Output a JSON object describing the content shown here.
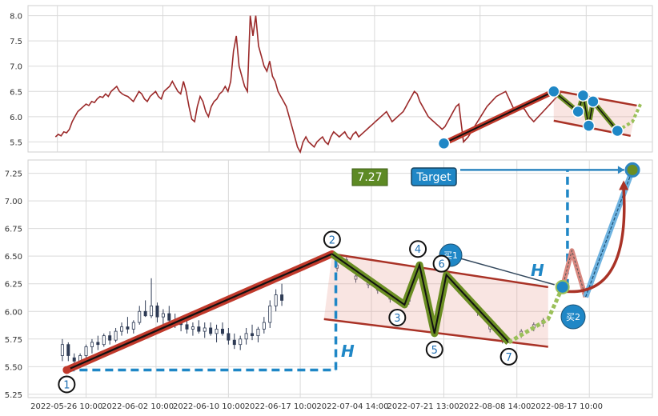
{
  "chart_data": [
    {
      "type": "line",
      "panel": "overview",
      "ylim": [
        5.3,
        8.2
      ],
      "yticks": [
        "5.5",
        "6.0",
        "6.5",
        "7.0",
        "7.5",
        "8.0"
      ],
      "ytick_values": [
        5.5,
        6.0,
        6.5,
        7.0,
        7.5,
        8.0
      ],
      "grid": true,
      "series": [
        {
          "values": [
            5.6,
            5.65,
            5.62,
            5.7,
            5.68,
            5.75,
            5.9,
            6.0,
            6.1,
            6.15,
            6.2,
            6.25,
            6.22,
            6.3,
            6.28,
            6.35,
            6.4,
            6.38,
            6.45,
            6.4,
            6.5,
            6.55,
            6.6,
            6.5,
            6.45,
            6.42,
            6.4,
            6.35,
            6.3,
            6.4,
            6.5,
            6.45,
            6.35,
            6.3,
            6.4,
            6.45,
            6.5,
            6.4,
            6.35,
            6.5,
            6.55,
            6.6,
            6.7,
            6.6,
            6.5,
            6.45,
            6.7,
            6.5,
            6.2,
            5.95,
            5.9,
            6.2,
            6.4,
            6.3,
            6.1,
            6.0,
            6.2,
            6.3,
            6.35,
            6.45,
            6.5,
            6.6,
            6.5,
            6.7,
            7.3,
            7.6,
            7.0,
            6.8,
            6.6,
            6.5,
            8.0,
            7.6,
            8.0,
            7.4,
            7.2,
            7.0,
            6.9,
            7.1,
            6.8,
            6.7,
            6.5,
            6.4,
            6.3,
            6.2,
            6.0,
            5.8,
            5.6,
            5.4,
            5.3,
            5.5,
            5.6,
            5.5,
            5.45,
            5.4,
            5.5,
            5.55,
            5.6,
            5.5,
            5.45,
            5.6,
            5.7,
            5.65,
            5.6,
            5.65,
            5.7,
            5.6,
            5.55,
            5.65,
            5.7,
            5.6,
            5.65,
            5.7,
            5.75,
            5.8,
            5.85,
            5.9,
            5.95,
            6.0,
            6.05,
            6.1,
            6.0,
            5.9,
            5.95,
            6.0,
            6.05,
            6.1,
            6.2,
            6.3,
            6.4,
            6.5,
            6.45,
            6.3,
            6.2,
            6.1,
            6.0,
            5.95,
            5.9,
            5.85,
            5.8,
            5.75,
            5.8,
            5.9,
            6.0,
            6.1,
            6.2,
            6.25
          ]
        }
      ],
      "pattern_points": [
        {
          "x": 0.666,
          "y": 5.47
        },
        {
          "x": 0.842,
          "y": 6.5
        },
        {
          "x": 0.881,
          "y": 6.1
        },
        {
          "x": 0.889,
          "y": 6.42
        },
        {
          "x": 0.898,
          "y": 5.82
        },
        {
          "x": 0.905,
          "y": 6.3
        },
        {
          "x": 0.944,
          "y": 5.72
        }
      ],
      "pattern_path": [
        {
          "x": 0.666,
          "y": 5.47
        },
        {
          "x": 0.842,
          "y": 6.5
        },
        {
          "x": 0.881,
          "y": 6.1
        },
        {
          "x": 0.889,
          "y": 6.42
        },
        {
          "x": 0.898,
          "y": 5.82
        },
        {
          "x": 0.905,
          "y": 6.3
        },
        {
          "x": 0.944,
          "y": 5.72
        },
        {
          "x": 0.968,
          "y": 5.9
        },
        {
          "x": 0.981,
          "y": 6.25
        }
      ],
      "channel_upper": [
        {
          "x": 0.842,
          "y": 6.52
        },
        {
          "x": 0.975,
          "y": 6.22
        }
      ],
      "channel_lower": [
        {
          "x": 0.842,
          "y": 5.92
        },
        {
          "x": 0.965,
          "y": 5.62
        }
      ]
    },
    {
      "type": "candlestick",
      "panel": "detail",
      "ylim": [
        5.22,
        7.37
      ],
      "yticks": [
        "5.25",
        "5.50",
        "5.75",
        "6.00",
        "6.25",
        "6.50",
        "6.75",
        "7.00",
        "7.25"
      ],
      "ytick_values": [
        5.25,
        5.5,
        5.75,
        6.0,
        6.25,
        6.5,
        6.75,
        7.0,
        7.25
      ],
      "xtick_labels": [
        "2022-05-26 10:00",
        "2022-06-02 10:00",
        "2022-06-10 10:00",
        "2022-06-17 10:00",
        "2022-07-04 14:00",
        "2022-07-21 13:00",
        "2022-08-08 14:00",
        "2022-08-17 10:00"
      ],
      "grid": true,
      "candles": [
        [
          0.0,
          5.6,
          5.75,
          5.55,
          5.7
        ],
        [
          0.01,
          5.7,
          5.72,
          5.55,
          5.6
        ],
        [
          0.02,
          5.58,
          5.62,
          5.48,
          5.55
        ],
        [
          0.03,
          5.55,
          5.62,
          5.5,
          5.6
        ],
        [
          0.04,
          5.6,
          5.7,
          5.58,
          5.68
        ],
        [
          0.05,
          5.68,
          5.75,
          5.62,
          5.72
        ],
        [
          0.06,
          5.72,
          5.78,
          5.65,
          5.7
        ],
        [
          0.07,
          5.7,
          5.8,
          5.68,
          5.78
        ],
        [
          0.08,
          5.78,
          5.82,
          5.7,
          5.74
        ],
        [
          0.09,
          5.74,
          5.85,
          5.72,
          5.82
        ],
        [
          0.1,
          5.82,
          5.9,
          5.78,
          5.86
        ],
        [
          0.11,
          5.86,
          5.95,
          5.8,
          5.84
        ],
        [
          0.12,
          5.84,
          5.92,
          5.8,
          5.9
        ],
        [
          0.13,
          5.9,
          6.05,
          5.88,
          6.0
        ],
        [
          0.14,
          6.0,
          6.1,
          5.95,
          5.96
        ],
        [
          0.15,
          5.96,
          6.3,
          5.94,
          6.05
        ],
        [
          0.16,
          6.05,
          6.08,
          5.9,
          5.95
        ],
        [
          0.17,
          5.95,
          6.02,
          5.88,
          5.98
        ],
        [
          0.18,
          5.98,
          6.05,
          5.9,
          5.92
        ],
        [
          0.19,
          5.92,
          5.98,
          5.85,
          5.9
        ],
        [
          0.2,
          5.9,
          5.95,
          5.82,
          5.88
        ],
        [
          0.21,
          5.88,
          5.95,
          5.8,
          5.84
        ],
        [
          0.22,
          5.84,
          5.9,
          5.78,
          5.86
        ],
        [
          0.23,
          5.86,
          5.92,
          5.8,
          5.82
        ],
        [
          0.24,
          5.82,
          5.9,
          5.76,
          5.85
        ],
        [
          0.25,
          5.85,
          5.9,
          5.78,
          5.8
        ],
        [
          0.26,
          5.8,
          5.88,
          5.72,
          5.84
        ],
        [
          0.27,
          5.84,
          5.9,
          5.78,
          5.8
        ],
        [
          0.28,
          5.8,
          5.85,
          5.7,
          5.74
        ],
        [
          0.29,
          5.74,
          5.8,
          5.66,
          5.7
        ],
        [
          0.3,
          5.7,
          5.78,
          5.65,
          5.75
        ],
        [
          0.31,
          5.75,
          5.85,
          5.7,
          5.8
        ],
        [
          0.32,
          5.8,
          5.88,
          5.74,
          5.78
        ],
        [
          0.33,
          5.78,
          5.86,
          5.72,
          5.84
        ],
        [
          0.34,
          5.84,
          5.95,
          5.8,
          5.9
        ],
        [
          0.35,
          5.9,
          6.1,
          5.85,
          6.05
        ],
        [
          0.36,
          6.05,
          6.2,
          6.0,
          6.15
        ],
        [
          0.37,
          6.15,
          6.25,
          6.05,
          6.1
        ]
      ],
      "pattern_points": [
        {
          "label": "1",
          "x": 0.062,
          "y": 5.47
        },
        {
          "label": "2",
          "x": 0.487,
          "y": 6.52
        },
        {
          "label": "3",
          "x": 0.603,
          "y": 6.06
        },
        {
          "label": "4",
          "x": 0.627,
          "y": 6.42
        },
        {
          "label": "5",
          "x": 0.651,
          "y": 5.8
        },
        {
          "label": "6",
          "x": 0.67,
          "y": 6.33
        },
        {
          "label": "7",
          "x": 0.77,
          "y": 5.72
        }
      ],
      "pattern_path": [
        {
          "x": 0.062,
          "y": 5.47
        },
        {
          "x": 0.487,
          "y": 6.52
        },
        {
          "x": 0.603,
          "y": 6.06
        },
        {
          "x": 0.627,
          "y": 6.42
        },
        {
          "x": 0.651,
          "y": 5.8
        },
        {
          "x": 0.67,
          "y": 6.33
        },
        {
          "x": 0.77,
          "y": 5.72
        }
      ],
      "breakout_path": [
        {
          "x": 0.77,
          "y": 5.72
        },
        {
          "x": 0.833,
          "y": 5.93
        },
        {
          "x": 0.856,
          "y": 6.22
        }
      ],
      "pullback_path": [
        {
          "x": 0.856,
          "y": 6.22
        },
        {
          "x": 0.871,
          "y": 6.55
        },
        {
          "x": 0.893,
          "y": 6.13
        }
      ],
      "target_path": [
        {
          "x": 0.893,
          "y": 6.13
        },
        {
          "x": 0.968,
          "y": 7.28
        }
      ],
      "channel_upper": [
        {
          "x": 0.487,
          "y": 6.52
        },
        {
          "x": 0.833,
          "y": 6.22
        }
      ],
      "channel_lower": [
        {
          "x": 0.474,
          "y": 5.93
        },
        {
          "x": 0.833,
          "y": 5.68
        }
      ],
      "h_level_line": {
        "y": 5.47,
        "x_from": 0.062,
        "x_to": 0.493
      },
      "h_vertical_left": {
        "x": 0.493,
        "y_from": 5.47,
        "y_to": 6.52
      },
      "h_vertical_right": {
        "x": 0.864,
        "y_from": 6.22,
        "y_to": 7.28
      },
      "target_value": "7.27",
      "target_label": "Target",
      "h_label": "H",
      "buy1_label": "买1",
      "buy2_label": "买2",
      "buy1_point": {
        "x": 0.856,
        "y": 6.22
      },
      "buy2_point": {
        "x": 0.893,
        "y": 6.13
      }
    }
  ],
  "colors": {
    "price_line": "#9b2a2a",
    "trend_red": "#c0392b",
    "channel": "#a93226",
    "fill": "rgba(235,160,150,0.28)",
    "pattern_green": "#6b8e23",
    "dot_blue": "#1f87c6",
    "target_box": "#1f87c6",
    "value_box": "#5d8a24",
    "candle": "#2e3b55",
    "grid": "#d9d9d9"
  }
}
